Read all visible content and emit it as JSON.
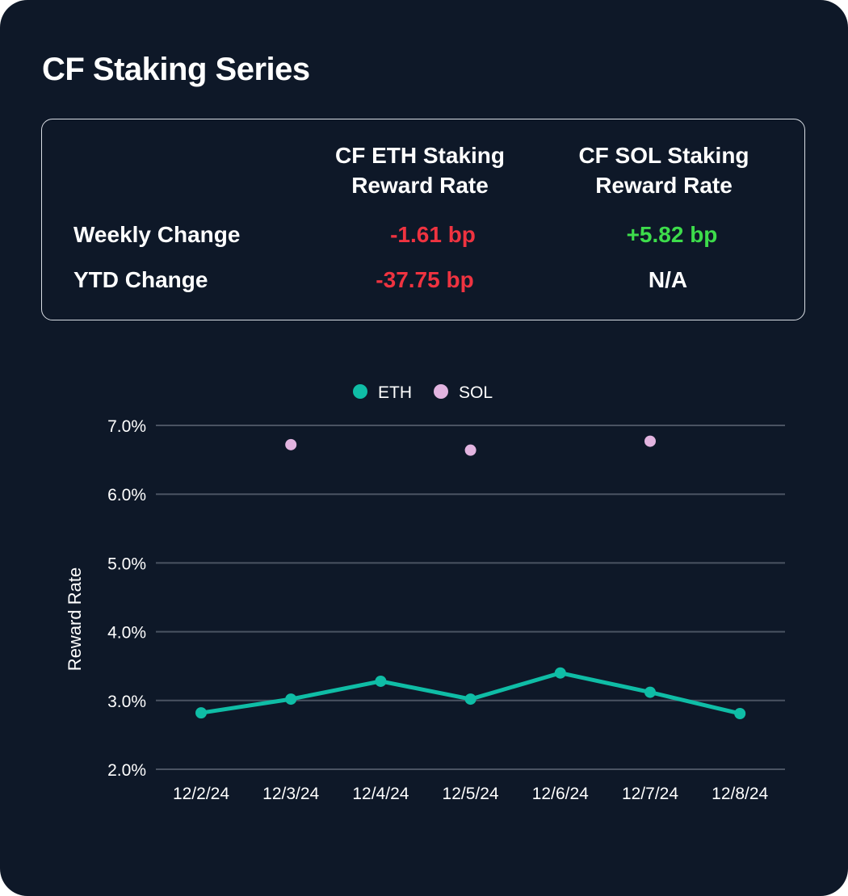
{
  "title": "CF Staking Series",
  "summary": {
    "columns": [
      "CF ETH Staking Reward Rate",
      "CF SOL Staking Reward Rate"
    ],
    "column_lines": [
      [
        "CF ETH Staking",
        "Reward Rate"
      ],
      [
        "CF SOL Staking",
        "Reward Rate"
      ]
    ],
    "rows": [
      {
        "label": "Weekly Change",
        "eth": "-1.61 bp",
        "sol": "+5.82 bp"
      },
      {
        "label": "YTD Change",
        "eth": "-37.75 bp",
        "sol": "N/A"
      }
    ],
    "colors": {
      "negative": "#ef3340",
      "positive": "#3ddc4b",
      "neutral": "#ffffff"
    }
  },
  "chart_data": {
    "type": "line",
    "categories": [
      "12/2/24",
      "12/3/24",
      "12/4/24",
      "12/5/24",
      "12/6/24",
      "12/7/24",
      "12/8/24"
    ],
    "series": [
      {
        "name": "ETH",
        "style": "line",
        "color": "#0fbda6",
        "values": [
          2.82,
          3.02,
          3.28,
          3.02,
          3.4,
          3.12,
          2.81
        ]
      },
      {
        "name": "SOL",
        "style": "scatter",
        "color": "#e2b4e0",
        "values": [
          null,
          6.72,
          null,
          6.64,
          null,
          6.77,
          null
        ]
      }
    ],
    "ylabel": "Reward Rate",
    "xlabel": "",
    "ylim": [
      2.0,
      7.0
    ],
    "yticks": [
      "2.0%",
      "3.0%",
      "4.0%",
      "5.0%",
      "6.0%",
      "7.0%"
    ],
    "grid": true,
    "legend_position": "top-center"
  }
}
